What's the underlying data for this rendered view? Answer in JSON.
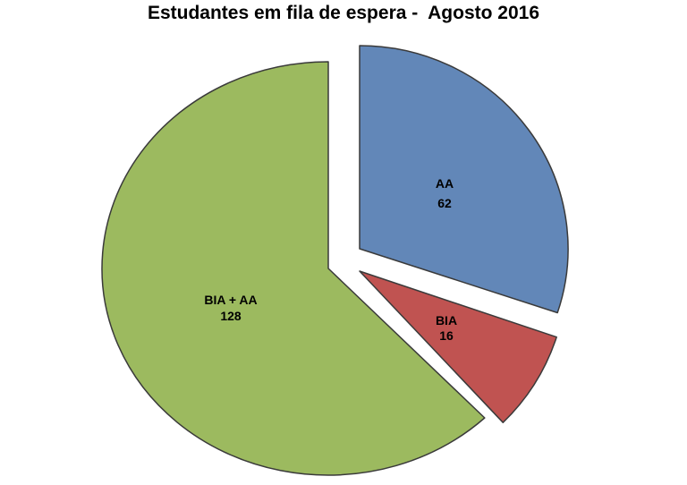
{
  "page": {
    "background_color": "#ffffff"
  },
  "chart_data": {
    "type": "pie",
    "title": "Estudantes em fila de espera -  Agosto 2016",
    "style": "exploded",
    "direction": "clockwise",
    "start_angle_deg": 0,
    "legend": "none",
    "border_color": "#3a3a3a",
    "label_color": "#000000",
    "slices": [
      {
        "label": "AA",
        "value": 62,
        "color": "#6287b8"
      },
      {
        "label": "BIA",
        "value": 16,
        "color": "#c05351"
      },
      {
        "label": "BIA + AA",
        "value": 128,
        "color": "#9cba5f"
      }
    ]
  }
}
